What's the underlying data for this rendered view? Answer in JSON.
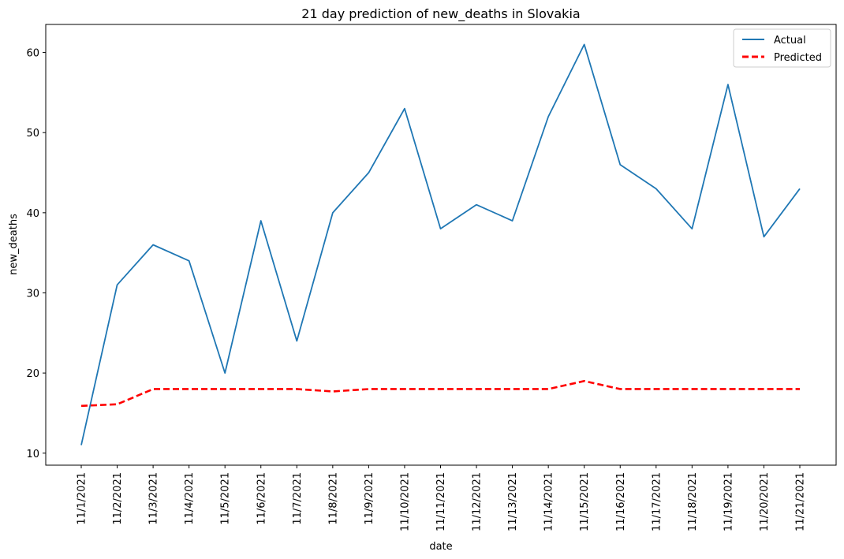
{
  "chart_data": {
    "type": "line",
    "title": "21 day prediction of new_deaths in Slovakia",
    "xlabel": "date",
    "ylabel": "new_deaths",
    "categories": [
      "11/1/2021",
      "11/2/2021",
      "11/3/2021",
      "11/4/2021",
      "11/5/2021",
      "11/6/2021",
      "11/7/2021",
      "11/8/2021",
      "11/9/2021",
      "11/10/2021",
      "11/11/2021",
      "11/12/2021",
      "11/13/2021",
      "11/14/2021",
      "11/15/2021",
      "11/16/2021",
      "11/17/2021",
      "11/18/2021",
      "11/19/2021",
      "11/20/2021",
      "11/21/2021"
    ],
    "series": [
      {
        "name": "Actual",
        "color": "#1f77b4",
        "style": "solid",
        "values": [
          11,
          31,
          36,
          34,
          20,
          39,
          24,
          40,
          45,
          53,
          38,
          41,
          39,
          52,
          61,
          46,
          43,
          38,
          56,
          37,
          43
        ]
      },
      {
        "name": "Predicted",
        "color": "#ff0000",
        "style": "dashed",
        "values": [
          15.9,
          16.1,
          18,
          18,
          18,
          18,
          18,
          17.7,
          18,
          18,
          18,
          18,
          18,
          18,
          19,
          18,
          18,
          18,
          18,
          18,
          18
        ]
      }
    ],
    "ylim": [
      8.5,
      63.5
    ],
    "yticks": [
      10,
      20,
      30,
      40,
      50,
      60
    ],
    "grid": false,
    "legend": "top-right"
  }
}
